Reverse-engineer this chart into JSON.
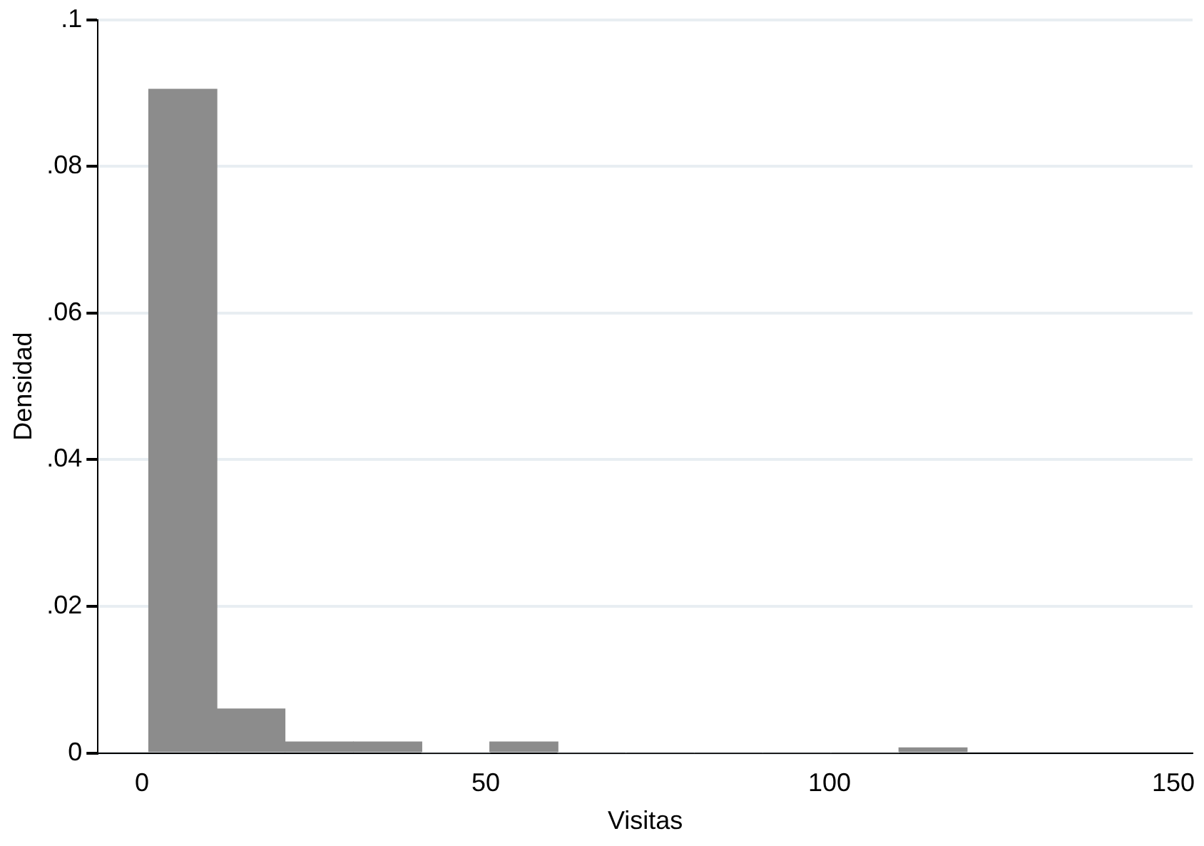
{
  "chart_data": {
    "type": "histogram",
    "xlabel": "Visitas",
    "ylabel": "Densidad",
    "bins": [
      1,
      10.9,
      20.8,
      30.8,
      40.7,
      50.6,
      60.5,
      70.4,
      80.3,
      90.3,
      100.2,
      110.1,
      120
    ],
    "values": [
      0.0905,
      0.006,
      0.0015,
      0.0015,
      0,
      0.0015,
      0,
      0,
      0,
      0,
      0,
      0.0007
    ],
    "color": "#8c8c8c",
    "xlim": [
      -6.4,
      152.8
    ],
    "xticks": [
      0,
      50,
      100,
      150
    ],
    "ylim": [
      0,
      0.1
    ],
    "yticks": [
      0,
      {
        "value": 0.02,
        "label": ".02"
      },
      {
        "value": 0.04,
        "label": ".04"
      },
      {
        "value": 0.06,
        "label": ".06"
      },
      {
        "value": 0.08,
        "label": ".08"
      },
      {
        "value": 0.1,
        "label": ".1"
      }
    ],
    "grid": "y",
    "legend": false
  }
}
